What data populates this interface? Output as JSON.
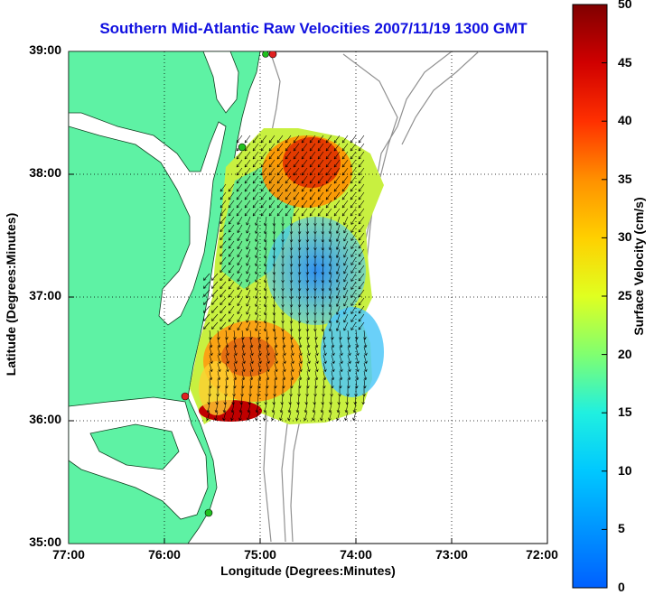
{
  "title": "Southern Mid-Atlantic Raw Velocities 2007/11/19 1300 GMT",
  "xlabel": "Longitude (Degrees:Minutes)",
  "ylabel": "Latitude (Degrees:Minutes)",
  "xticks": [
    "77:00",
    "76:00",
    "75:00",
    "74:00",
    "73:00",
    "72:00"
  ],
  "yticks": [
    "39:00",
    "38:00",
    "37:00",
    "36:00",
    "35:00"
  ],
  "colorbar": {
    "label": "Surface Velocity (cm/s)",
    "ticks": [
      "50",
      "45",
      "40",
      "35",
      "30",
      "25",
      "20",
      "15",
      "10",
      "5",
      "0"
    ],
    "min": 0,
    "max": 50
  },
  "colors": {
    "land": "#5ef2a4",
    "title": "#1010e0",
    "stations_green": "#20c020",
    "stations_red": "#e02020"
  },
  "map": {
    "lon_range": [
      -77,
      -72
    ],
    "lat_range": [
      35,
      39
    ],
    "grid": "dotted"
  }
}
